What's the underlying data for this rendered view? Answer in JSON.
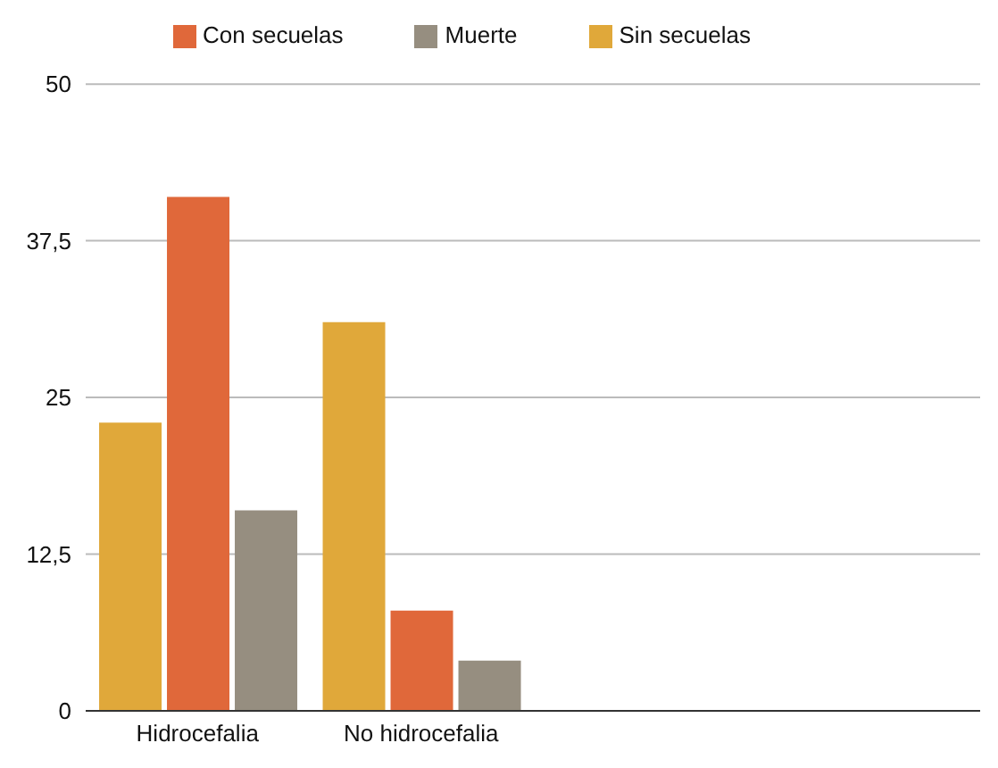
{
  "chart_data": {
    "type": "bar",
    "categories": [
      "Hidrocefalia",
      "No hidrocefalia",
      null,
      null
    ],
    "series": [
      {
        "name": "Sin secuelas",
        "color": "#e0a83a",
        "values": [
          23,
          31,
          null,
          null
        ]
      },
      {
        "name": "Con secuelas",
        "color": "#e0683a",
        "values": [
          41,
          8,
          null,
          null
        ]
      },
      {
        "name": "Muerte",
        "color": "#968e80",
        "values": [
          16,
          4,
          null,
          null
        ]
      }
    ],
    "ylim": [
      0,
      50
    ],
    "yticks": [
      0,
      {
        "value": 12.5,
        "label": "12,5"
      },
      25,
      {
        "value": 37.5,
        "label": "37,5"
      },
      50
    ],
    "grid": "y",
    "legend": "top"
  }
}
